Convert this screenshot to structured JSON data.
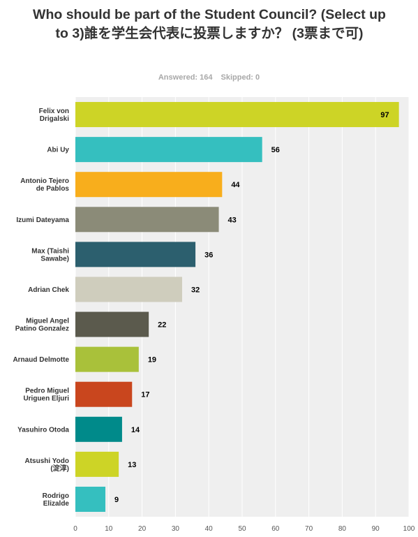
{
  "title": "Who should be part of the Student Council? (Select up to 3)誰を学生会代表に投票しますか？ (3票まで可)",
  "summary": {
    "answered": "Answered: 164",
    "skipped": "Skipped: 0"
  },
  "chart_data": {
    "type": "bar",
    "orientation": "horizontal",
    "title": "Who should be part of the Student Council? (Select up to 3)誰を学生会代表に投票しますか？ (3票まで可)",
    "categories": [
      [
        "Felix von",
        "Drigalski"
      ],
      [
        "Abi Uy"
      ],
      [
        "Antonio Tejero",
        "de Pablos"
      ],
      [
        "Izumi Dateyama"
      ],
      [
        "Max (Taishi",
        "Sawabe)"
      ],
      [
        "Adrian Chek"
      ],
      [
        "Miguel Angel",
        "Patino Gonzalez"
      ],
      [
        "Arnaud Delmotte"
      ],
      [
        "Pedro Miguel",
        "Uriguen Eljuri"
      ],
      [
        "Yasuhiro Otoda"
      ],
      [
        "Atsushi Yodo",
        "(淀淳)"
      ],
      [
        "Rodrigo",
        "Elizalde"
      ]
    ],
    "values": [
      97,
      56,
      44,
      43,
      36,
      32,
      22,
      19,
      17,
      14,
      13,
      9
    ],
    "colors": [
      "#cdd426",
      "#35bfbf",
      "#f8ae1c",
      "#8b8b78",
      "#2c5f6e",
      "#cfcdbd",
      "#5b5a4d",
      "#a9c13a",
      "#c9461e",
      "#008a8a",
      "#cdd426",
      "#35bfbf"
    ],
    "xlim": [
      0,
      100
    ],
    "xticks": [
      0,
      10,
      20,
      30,
      40,
      50,
      60,
      70,
      80,
      90,
      100
    ],
    "grid": true,
    "background": "#efefef"
  }
}
